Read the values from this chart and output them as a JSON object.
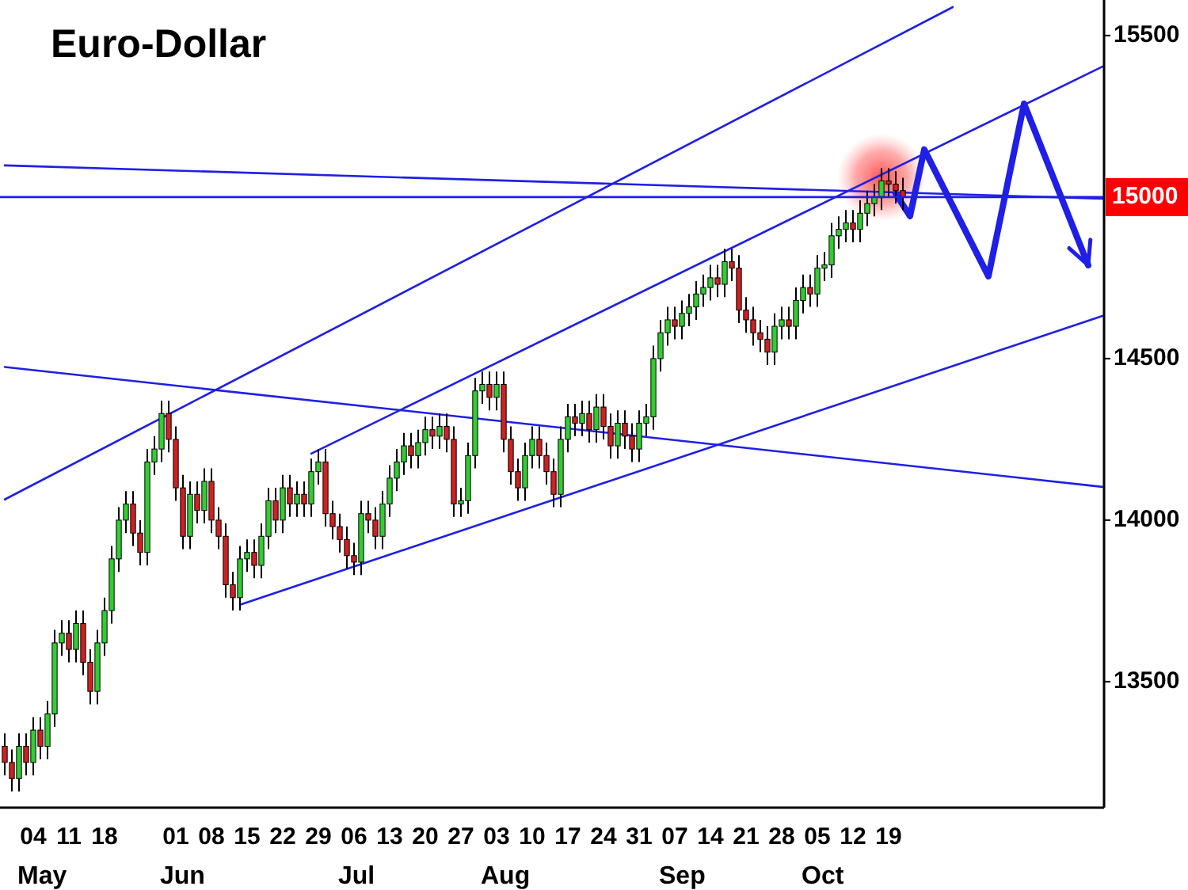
{
  "chart_data": {
    "type": "candlestick",
    "title": "Euro-Dollar",
    "categories": [
      null,
      null,
      null,
      null,
      "04\nMay",
      null,
      null,
      null,
      null,
      "11",
      null,
      null,
      null,
      null,
      "18",
      null,
      null,
      null,
      null,
      null,
      null,
      null,
      null,
      null,
      "01\nJun",
      null,
      null,
      null,
      null,
      "08",
      null,
      null,
      null,
      null,
      "15",
      null,
      null,
      null,
      null,
      "22",
      null,
      null,
      null,
      null,
      "29",
      null,
      null,
      null,
      null,
      "06\nJul",
      null,
      null,
      null,
      null,
      "13",
      null,
      null,
      null,
      null,
      "20",
      null,
      null,
      null,
      null,
      "27",
      null,
      null,
      null,
      null,
      "03\nAug",
      null,
      null,
      null,
      null,
      "10",
      null,
      null,
      null,
      null,
      "17",
      null,
      null,
      null,
      null,
      "24",
      null,
      null,
      null,
      null,
      "31",
      null,
      null,
      null,
      null,
      "07\nSep",
      null,
      null,
      null,
      null,
      "14",
      null,
      null,
      null,
      null,
      "21",
      null,
      null,
      null,
      null,
      "28",
      null,
      null,
      null,
      null,
      "05\nOct",
      null,
      null,
      null,
      null,
      "12",
      null,
      null,
      null,
      null,
      "19",
      null,
      null,
      null,
      null,
      null,
      null,
      null,
      null,
      null,
      null,
      null,
      null,
      null,
      null,
      null,
      null,
      null,
      null,
      null,
      null,
      null,
      null,
      null,
      null,
      null,
      null,
      null,
      null,
      null,
      null
    ],
    "ohlc": [
      [
        13300,
        13340,
        13210,
        13250
      ],
      [
        13250,
        13290,
        13160,
        13200
      ],
      [
        13200,
        13340,
        13160,
        13300
      ],
      [
        13300,
        13340,
        13210,
        13250
      ],
      [
        13250,
        13390,
        13210,
        13350
      ],
      [
        13350,
        13390,
        13260,
        13300
      ],
      [
        13300,
        13440,
        13260,
        13400
      ],
      [
        13400,
        13660,
        13360,
        13620
      ],
      [
        13620,
        13690,
        13580,
        13650
      ],
      [
        13650,
        13690,
        13560,
        13600
      ],
      [
        13600,
        13720,
        13560,
        13680
      ],
      [
        13680,
        13720,
        13520,
        13560
      ],
      [
        13560,
        13600,
        13430,
        13470
      ],
      [
        13470,
        13660,
        13430,
        13620
      ],
      [
        13620,
        13760,
        13580,
        13720
      ],
      [
        13720,
        13920,
        13680,
        13880
      ],
      [
        13880,
        14040,
        13840,
        14000
      ],
      [
        14000,
        14090,
        13960,
        14050
      ],
      [
        14050,
        14090,
        13920,
        13960
      ],
      [
        13960,
        14000,
        13860,
        13900
      ],
      [
        13900,
        14220,
        13860,
        14180
      ],
      [
        14180,
        14260,
        14140,
        14220
      ],
      [
        14220,
        14370,
        14180,
        14330
      ],
      [
        14330,
        14370,
        14210,
        14250
      ],
      [
        14250,
        14290,
        14060,
        14100
      ],
      [
        14100,
        14140,
        13910,
        13950
      ],
      [
        13950,
        14120,
        13910,
        14080
      ],
      [
        14080,
        14120,
        13990,
        14030
      ],
      [
        14030,
        14160,
        13990,
        14120
      ],
      [
        14120,
        14160,
        13960,
        14000
      ],
      [
        14000,
        14040,
        13910,
        13950
      ],
      [
        13950,
        13990,
        13760,
        13800
      ],
      [
        13800,
        13840,
        13720,
        13760
      ],
      [
        13760,
        13920,
        13720,
        13880
      ],
      [
        13880,
        13940,
        13840,
        13900
      ],
      [
        13900,
        13940,
        13820,
        13860
      ],
      [
        13860,
        13990,
        13820,
        13950
      ],
      [
        13950,
        14100,
        13910,
        14060
      ],
      [
        14060,
        14100,
        13960,
        14000
      ],
      [
        14000,
        14140,
        13960,
        14100
      ],
      [
        14100,
        14140,
        14010,
        14050
      ],
      [
        14050,
        14120,
        14010,
        14080
      ],
      [
        14080,
        14120,
        14010,
        14050
      ],
      [
        14050,
        14190,
        14010,
        14150
      ],
      [
        14150,
        14220,
        14110,
        14180
      ],
      [
        14180,
        14220,
        13980,
        14020
      ],
      [
        14020,
        14060,
        13940,
        13980
      ],
      [
        13980,
        14020,
        13900,
        13940
      ],
      [
        13940,
        13980,
        13850,
        13890
      ],
      [
        13890,
        13930,
        13830,
        13870
      ],
      [
        13870,
        14060,
        13830,
        14020
      ],
      [
        14020,
        14060,
        13960,
        14000
      ],
      [
        14000,
        14040,
        13910,
        13950
      ],
      [
        13950,
        14090,
        13910,
        14050
      ],
      [
        14050,
        14170,
        14010,
        14130
      ],
      [
        14130,
        14220,
        14090,
        14180
      ],
      [
        14180,
        14270,
        14140,
        14230
      ],
      [
        14230,
        14270,
        14160,
        14200
      ],
      [
        14200,
        14280,
        14160,
        14240
      ],
      [
        14240,
        14320,
        14200,
        14280
      ],
      [
        14280,
        14320,
        14220,
        14260
      ],
      [
        14260,
        14330,
        14220,
        14290
      ],
      [
        14290,
        14330,
        14210,
        14250
      ],
      [
        14250,
        14290,
        14010,
        14050
      ],
      [
        14050,
        14100,
        14010,
        14060
      ],
      [
        14060,
        14240,
        14020,
        14200
      ],
      [
        14200,
        14440,
        14160,
        14400
      ],
      [
        14400,
        14460,
        14360,
        14420
      ],
      [
        14420,
        14460,
        14340,
        14380
      ],
      [
        14380,
        14460,
        14340,
        14420
      ],
      [
        14420,
        14460,
        14210,
        14250
      ],
      [
        14250,
        14290,
        14110,
        14150
      ],
      [
        14150,
        14190,
        14060,
        14100
      ],
      [
        14100,
        14240,
        14060,
        14200
      ],
      [
        14200,
        14290,
        14160,
        14250
      ],
      [
        14250,
        14290,
        14160,
        14200
      ],
      [
        14200,
        14240,
        14110,
        14150
      ],
      [
        14150,
        14190,
        14040,
        14080
      ],
      [
        14080,
        14290,
        14040,
        14250
      ],
      [
        14250,
        14360,
        14210,
        14320
      ],
      [
        14320,
        14360,
        14260,
        14300
      ],
      [
        14300,
        14370,
        14260,
        14330
      ],
      [
        14330,
        14370,
        14240,
        14280
      ],
      [
        14280,
        14390,
        14240,
        14350
      ],
      [
        14350,
        14390,
        14250,
        14290
      ],
      [
        14290,
        14330,
        14190,
        14230
      ],
      [
        14230,
        14340,
        14190,
        14300
      ],
      [
        14300,
        14340,
        14220,
        14260
      ],
      [
        14260,
        14300,
        14180,
        14220
      ],
      [
        14220,
        14340,
        14180,
        14300
      ],
      [
        14300,
        14360,
        14260,
        14320
      ],
      [
        14320,
        14540,
        14280,
        14500
      ],
      [
        14500,
        14620,
        14460,
        14580
      ],
      [
        14580,
        14660,
        14540,
        14620
      ],
      [
        14620,
        14660,
        14560,
        14600
      ],
      [
        14600,
        14680,
        14560,
        14640
      ],
      [
        14640,
        14700,
        14600,
        14660
      ],
      [
        14660,
        14740,
        14620,
        14700
      ],
      [
        14700,
        14760,
        14660,
        14720
      ],
      [
        14720,
        14790,
        14680,
        14750
      ],
      [
        14750,
        14790,
        14690,
        14730
      ],
      [
        14730,
        14840,
        14690,
        14800
      ],
      [
        14800,
        14840,
        14740,
        14780
      ],
      [
        14780,
        14820,
        14610,
        14650
      ],
      [
        14650,
        14690,
        14580,
        14620
      ],
      [
        14620,
        14660,
        14540,
        14580
      ],
      [
        14580,
        14620,
        14520,
        14560
      ],
      [
        14560,
        14600,
        14480,
        14520
      ],
      [
        14520,
        14640,
        14480,
        14600
      ],
      [
        14600,
        14660,
        14560,
        14620
      ],
      [
        14620,
        14660,
        14560,
        14600
      ],
      [
        14600,
        14720,
        14560,
        14680
      ],
      [
        14680,
        14760,
        14640,
        14720
      ],
      [
        14720,
        14760,
        14660,
        14700
      ],
      [
        14700,
        14820,
        14660,
        14780
      ],
      [
        14780,
        14830,
        14740,
        14790
      ],
      [
        14790,
        14920,
        14750,
        14880
      ],
      [
        14880,
        14940,
        14840,
        14900
      ],
      [
        14900,
        14960,
        14860,
        14920
      ],
      [
        14920,
        14960,
        14860,
        14900
      ],
      [
        14900,
        14990,
        14860,
        14950
      ],
      [
        14950,
        15020,
        14910,
        14980
      ],
      [
        14980,
        15040,
        14940,
        15000
      ],
      [
        15000,
        15090,
        14960,
        15050
      ],
      [
        15050,
        15090,
        15000,
        15040
      ],
      [
        15040,
        15080,
        14980,
        15020
      ],
      [
        15020,
        15060,
        14960,
        15000
      ],
      null,
      null,
      null,
      null,
      null,
      null,
      null,
      null,
      null,
      null,
      null,
      null,
      null,
      null,
      null,
      null,
      null,
      null,
      null,
      null,
      null,
      null,
      null,
      null,
      null,
      null,
      null,
      null
    ],
    "series": [
      {
        "type": "line",
        "color": "#1f1fe6",
        "values": [
          14064,
          null,
          null,
          null,
          null,
          null,
          null,
          null,
          null,
          null,
          null,
          null,
          null,
          null,
          null,
          null,
          null,
          null,
          null,
          null,
          null,
          null,
          null,
          null,
          null,
          null,
          null,
          null,
          null,
          null,
          null,
          null,
          null,
          null,
          null,
          null,
          null,
          null,
          null,
          null,
          null,
          null,
          null,
          null,
          null,
          null,
          null,
          null,
          null,
          null,
          null,
          null,
          null,
          null,
          null,
          null,
          null,
          null,
          null,
          null,
          null,
          null,
          null,
          null,
          null,
          null,
          null,
          null,
          null,
          null,
          null,
          null,
          null,
          null,
          null,
          null,
          null,
          null,
          null,
          null,
          null,
          null,
          null,
          null,
          null,
          null,
          null,
          null,
          null,
          null,
          null,
          null,
          null,
          null,
          null,
          null,
          null,
          null,
          null,
          null,
          null,
          null,
          null,
          null,
          null,
          null,
          null,
          null,
          null,
          null,
          null,
          null,
          null,
          null,
          null,
          null,
          null,
          null,
          null,
          null,
          null,
          null,
          null,
          null,
          null,
          null,
          null,
          null,
          null,
          null,
          null,
          null,
          null,
          15588,
          null,
          null,
          null,
          null,
          null,
          null,
          null,
          null,
          null,
          null,
          null,
          null,
          null,
          null,
          null,
          null,
          null,
          null,
          null,
          null,
          null
        ]
      },
      {
        "type": "line",
        "color": "#1f1fe6",
        "values": [
          null,
          null,
          null,
          null,
          null,
          null,
          null,
          null,
          null,
          null,
          null,
          null,
          null,
          null,
          null,
          null,
          null,
          null,
          null,
          null,
          null,
          null,
          null,
          null,
          null,
          null,
          null,
          null,
          null,
          null,
          null,
          null,
          null,
          null,
          null,
          null,
          null,
          null,
          null,
          null,
          null,
          null,
          null,
          14206,
          null,
          null,
          null,
          null,
          null,
          null,
          null,
          null,
          null,
          null,
          null,
          null,
          null,
          null,
          null,
          null,
          null,
          null,
          null,
          null,
          null,
          null,
          null,
          null,
          null,
          null,
          null,
          null,
          null,
          null,
          null,
          null,
          null,
          null,
          null,
          null,
          null,
          null,
          null,
          null,
          null,
          null,
          null,
          null,
          null,
          null,
          null,
          null,
          null,
          null,
          null,
          null,
          null,
          null,
          null,
          null,
          null,
          null,
          null,
          null,
          null,
          null,
          null,
          null,
          null,
          null,
          null,
          null,
          null,
          null,
          null,
          null,
          null,
          null,
          null,
          null,
          null,
          null,
          null,
          null,
          null,
          null,
          null,
          null,
          null,
          null,
          null,
          null,
          null,
          null,
          null,
          null,
          null,
          null,
          null,
          null,
          null,
          null,
          null,
          null,
          null,
          null,
          null,
          null,
          null,
          null,
          null,
          null,
          null,
          null,
          15404
        ]
      },
      {
        "type": "line",
        "color": "#1f1fe6",
        "values": [
          null,
          null,
          null,
          null,
          null,
          null,
          null,
          null,
          null,
          null,
          null,
          null,
          null,
          null,
          null,
          null,
          null,
          null,
          null,
          null,
          null,
          null,
          null,
          null,
          null,
          null,
          null,
          null,
          null,
          null,
          null,
          null,
          null,
          13738,
          null,
          null,
          null,
          null,
          null,
          null,
          null,
          null,
          null,
          null,
          null,
          null,
          null,
          null,
          null,
          null,
          null,
          null,
          null,
          null,
          null,
          null,
          null,
          null,
          null,
          null,
          null,
          null,
          null,
          null,
          null,
          null,
          null,
          null,
          null,
          null,
          null,
          null,
          null,
          null,
          null,
          null,
          null,
          null,
          null,
          null,
          null,
          null,
          null,
          null,
          null,
          null,
          null,
          null,
          null,
          null,
          null,
          null,
          null,
          null,
          null,
          null,
          null,
          null,
          null,
          null,
          null,
          null,
          null,
          null,
          null,
          null,
          null,
          null,
          null,
          null,
          null,
          null,
          null,
          null,
          null,
          null,
          null,
          null,
          null,
          null,
          null,
          null,
          null,
          null,
          null,
          null,
          null,
          null,
          null,
          null,
          null,
          null,
          null,
          null,
          null,
          null,
          null,
          null,
          null,
          null,
          null,
          null,
          null,
          null,
          null,
          null,
          null,
          null,
          null,
          null,
          null,
          null,
          null,
          null,
          14632
        ]
      },
      {
        "type": "line",
        "color": "#1f1fe6",
        "values": [
          14474,
          null,
          null,
          null,
          null,
          null,
          null,
          null,
          null,
          null,
          null,
          null,
          null,
          null,
          null,
          null,
          null,
          null,
          null,
          null,
          null,
          null,
          null,
          null,
          null,
          null,
          null,
          null,
          null,
          null,
          null,
          null,
          null,
          null,
          null,
          null,
          null,
          null,
          null,
          null,
          null,
          null,
          null,
          null,
          null,
          null,
          null,
          null,
          null,
          null,
          null,
          null,
          null,
          null,
          null,
          null,
          null,
          null,
          null,
          null,
          null,
          null,
          null,
          null,
          null,
          null,
          null,
          null,
          null,
          null,
          null,
          null,
          null,
          null,
          null,
          null,
          null,
          null,
          null,
          null,
          null,
          null,
          null,
          null,
          null,
          null,
          null,
          null,
          null,
          null,
          null,
          null,
          null,
          null,
          null,
          null,
          null,
          null,
          null,
          null,
          null,
          null,
          null,
          null,
          null,
          null,
          null,
          null,
          null,
          null,
          null,
          null,
          null,
          null,
          null,
          null,
          null,
          null,
          null,
          null,
          null,
          null,
          null,
          null,
          null,
          null,
          null,
          null,
          null,
          null,
          null,
          null,
          null,
          null,
          null,
          null,
          null,
          null,
          null,
          null,
          null,
          null,
          null,
          null,
          null,
          null,
          null,
          null,
          null,
          null,
          null,
          null,
          null,
          null,
          14103
        ]
      },
      {
        "type": "line",
        "color": "#1f1fe6",
        "values": [
          15098,
          null,
          null,
          null,
          null,
          null,
          null,
          null,
          null,
          null,
          null,
          null,
          null,
          null,
          null,
          null,
          null,
          null,
          null,
          null,
          null,
          null,
          null,
          null,
          null,
          null,
          null,
          null,
          null,
          null,
          null,
          null,
          null,
          null,
          null,
          null,
          null,
          null,
          null,
          null,
          null,
          null,
          null,
          null,
          null,
          null,
          null,
          null,
          null,
          null,
          null,
          null,
          null,
          null,
          null,
          null,
          null,
          null,
          null,
          null,
          null,
          null,
          null,
          null,
          null,
          null,
          null,
          null,
          null,
          null,
          null,
          null,
          null,
          null,
          null,
          null,
          null,
          null,
          null,
          null,
          null,
          null,
          null,
          null,
          null,
          null,
          null,
          null,
          null,
          null,
          null,
          null,
          null,
          null,
          null,
          null,
          null,
          null,
          null,
          null,
          null,
          null,
          null,
          null,
          null,
          null,
          null,
          null,
          null,
          null,
          null,
          null,
          null,
          null,
          null,
          null,
          null,
          null,
          null,
          null,
          null,
          null,
          null,
          null,
          null,
          null,
          null,
          null,
          null,
          null,
          null,
          null,
          null,
          null,
          null,
          null,
          null,
          null,
          null,
          null,
          null,
          null,
          null,
          null,
          null,
          null,
          null,
          null,
          null,
          null,
          null,
          null,
          null,
          null,
          14995
        ]
      },
      {
        "type": "line",
        "color": "#1f1fe6",
        "values": [
          null,
          null,
          null,
          null,
          null,
          null,
          null,
          null,
          null,
          null,
          null,
          null,
          null,
          null,
          null,
          null,
          null,
          null,
          null,
          null,
          null,
          null,
          null,
          null,
          null,
          null,
          null,
          null,
          null,
          null,
          null,
          null,
          null,
          null,
          null,
          null,
          null,
          null,
          null,
          null,
          null,
          null,
          null,
          null,
          null,
          null,
          null,
          null,
          null,
          null,
          null,
          null,
          null,
          null,
          null,
          null,
          null,
          null,
          null,
          null,
          null,
          null,
          null,
          null,
          null,
          null,
          null,
          null,
          null,
          null,
          null,
          null,
          null,
          null,
          null,
          null,
          null,
          null,
          null,
          null,
          null,
          null,
          null,
          null,
          null,
          null,
          null,
          null,
          null,
          null,
          null,
          null,
          null,
          null,
          null,
          null,
          null,
          null,
          null,
          null,
          null,
          null,
          null,
          null,
          null,
          null,
          null,
          null,
          null,
          null,
          null,
          null,
          null,
          null,
          null,
          null,
          null,
          null,
          null,
          null,
          null,
          null,
          null,
          null,
          null,
          15010,
          null,
          14941,
          null,
          15147,
          null,
          null,
          null,
          null,
          null,
          null,
          null,
          null,
          14755,
          null,
          null,
          null,
          null,
          15289,
          null,
          null,
          null,
          null,
          null,
          null,
          null,
          null,
          14789,
          null,
          null
        ]
      }
    ],
    "ylim": [
      13110,
      15610
    ],
    "yticks": [
      13500,
      14000,
      14500,
      15500
    ],
    "ref_lines": [
      {
        "axis": "y",
        "value": 15000,
        "label": "15000",
        "color": "#1f1fe6"
      }
    ]
  }
}
